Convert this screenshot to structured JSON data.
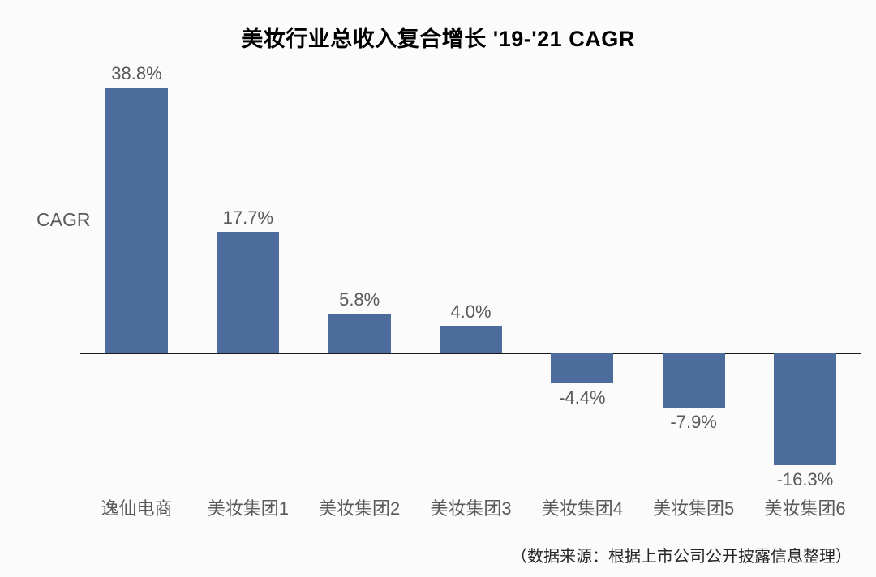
{
  "title": "美妆行业总收入复合增长 '19-'21 CAGR",
  "y_axis_label": "CAGR",
  "source_note": "（数据来源：根据上市公司公开披露信息整理）",
  "colors": {
    "bar": "#4C6D9C",
    "label_text": "#595959",
    "title_text": "#000000",
    "axis_line": "#1a1a1a",
    "background": "#fbfbfb"
  },
  "chart_data": {
    "type": "bar",
    "title": "美妆行业总收入复合增长 '19-'21 CAGR",
    "categories": [
      "逸仙电商",
      "美妆集团1",
      "美妆集团2",
      "美妆集团3",
      "美妆集团4",
      "美妆集团5",
      "美妆集团6"
    ],
    "values": [
      38.8,
      17.7,
      5.8,
      4.0,
      -4.4,
      -7.9,
      -16.3
    ],
    "value_labels": [
      "38.8%",
      "17.7%",
      "5.8%",
      "4.0%",
      "-4.4%",
      "-7.9%",
      "-16.3%"
    ],
    "xlabel": "",
    "ylabel": "CAGR",
    "ylim": [
      -20,
      45
    ],
    "grid": false,
    "legend_position": "none",
    "annotations": [
      "data labels shown on each bar"
    ],
    "source": "（数据来源：根据上市公司公开披露信息整理）"
  }
}
